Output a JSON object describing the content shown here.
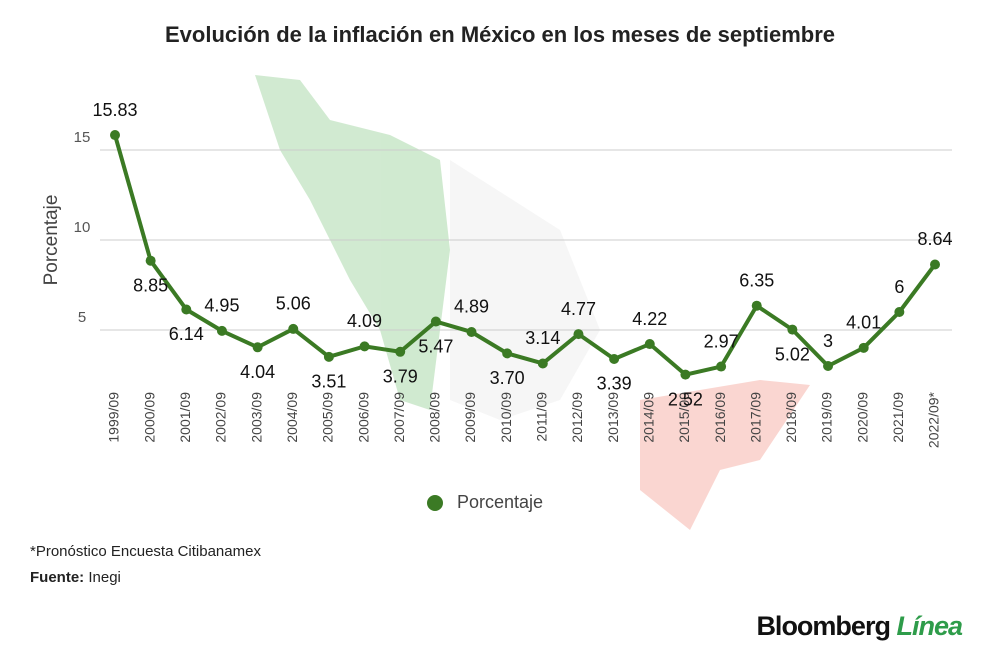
{
  "chart_data": {
    "type": "line",
    "title": "Evolución de la inflación en México en los meses de septiembre",
    "y_label": "Porcentaje",
    "categories": [
      "1999/09",
      "2000/09",
      "2001/09",
      "2002/09",
      "2003/09",
      "2004/09",
      "2005/09",
      "2006/09",
      "2007/09",
      "2008/09",
      "2009/09",
      "2010/09",
      "2011/09",
      "2012/09",
      "2013/09",
      "2014/09",
      "2015/09",
      "2016/09",
      "2017/09",
      "2018/09",
      "2019/09",
      "2020/09",
      "2021/09",
      "2022/09*"
    ],
    "series": [
      {
        "name": "Porcentaje",
        "color": "#3b7a24",
        "values": [
          15.83,
          8.85,
          6.14,
          4.95,
          4.04,
          5.06,
          3.51,
          4.09,
          3.79,
          5.47,
          4.89,
          3.7,
          3.14,
          4.77,
          3.39,
          4.22,
          2.52,
          2.97,
          6.35,
          5.02,
          3,
          4.01,
          6,
          8.64
        ],
        "value_labels": [
          "15.83",
          "8.85",
          "6.14",
          "4.95",
          "4.04",
          "5.06",
          "3.51",
          "4.09",
          "3.79",
          "5.47",
          "4.89",
          "3.70",
          "3.14",
          "4.77",
          "3.39",
          "4.22",
          "2.52",
          "2.97",
          "6.35",
          "5.02",
          "3",
          "4.01",
          "6",
          "8.64"
        ]
      }
    ],
    "ylim": [
      1,
      17
    ],
    "yticks": [
      5,
      10,
      15
    ],
    "grid": true,
    "legend": "bottom",
    "footnote": "*Pronóstico Encuesta Citibanamex",
    "source_label": "Fuente:",
    "source": "Inegi",
    "logo": "Bloomberg",
    "logo_accent": "Línea"
  }
}
